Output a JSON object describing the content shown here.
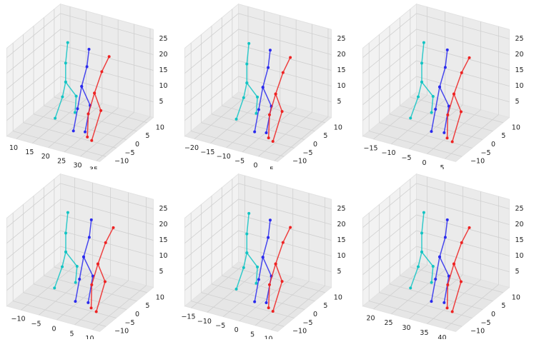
{
  "chart_data": [
    {
      "type": "line3d",
      "xlim": [
        7,
        36
      ],
      "ylim": [
        -13,
        13
      ],
      "zlim": [
        0,
        28
      ],
      "xticks": [
        10,
        15,
        20,
        25,
        30,
        35
      ],
      "yticks": [
        {
          "value": -10,
          "label": "−10"
        },
        {
          "value": -5,
          "label": "−5"
        },
        0,
        5,
        10
      ],
      "zticks": [
        5,
        10,
        15,
        20,
        25
      ],
      "series": [
        {
          "color": "#12c4c4",
          "x": [
            15,
            16,
            17,
            19,
            18,
            null,
            17,
            17,
            17
          ],
          "y": [
            -2,
            0,
            0,
            2,
            3,
            null,
            0,
            0,
            1
          ],
          "z": [
            2,
            8,
            13,
            8,
            2,
            null,
            13,
            19,
            25
          ]
        },
        {
          "color": "#2a2aee",
          "x": [
            22,
            22,
            22,
            24,
            25,
            null,
            22,
            23,
            23
          ],
          "y": [
            -4,
            -2,
            0,
            1,
            -3,
            null,
            0,
            1,
            2
          ],
          "z": [
            1,
            7,
            13,
            7,
            1,
            null,
            13,
            19,
            24
          ]
        },
        {
          "color": "#ee2222",
          "x": [
            27,
            26,
            26,
            28,
            29,
            null,
            26,
            27,
            28
          ],
          "y": [
            -5,
            -3,
            0,
            0,
            -6,
            null,
            0,
            2,
            4
          ],
          "z": [
            1,
            7,
            12,
            7,
            1,
            null,
            12,
            18,
            22
          ]
        }
      ]
    },
    {
      "type": "line3d",
      "xlim": [
        -23,
        6
      ],
      "ylim": [
        -13,
        13
      ],
      "zlim": [
        0,
        28
      ],
      "xticks": [
        {
          "value": -20,
          "label": "−20"
        },
        {
          "value": -15,
          "label": "−15"
        },
        {
          "value": -10,
          "label": "−10"
        },
        {
          "value": -5,
          "label": "−5"
        },
        0,
        5
      ],
      "yticks": [
        {
          "value": -10,
          "label": "−10"
        },
        {
          "value": -5,
          "label": "−5"
        },
        0,
        5,
        10
      ],
      "zticks": [
        5,
        10,
        15,
        20,
        25
      ],
      "series": [
        {
          "color": "#12c4c4",
          "x": [
            -14,
            -13,
            -12,
            -10,
            -11,
            null,
            -12,
            -12,
            -12
          ],
          "y": [
            -2,
            0,
            0,
            2,
            3,
            null,
            0,
            0,
            1
          ],
          "z": [
            2,
            8,
            13,
            8,
            2,
            null,
            13,
            19,
            25
          ]
        },
        {
          "color": "#2a2aee",
          "x": [
            -7,
            -7,
            -7,
            -5,
            -4,
            null,
            -7,
            -6,
            -6
          ],
          "y": [
            -4,
            -2,
            0,
            1,
            -3,
            null,
            0,
            1,
            2
          ],
          "z": [
            1,
            7,
            13,
            7,
            1,
            null,
            13,
            19,
            24
          ]
        },
        {
          "color": "#ee2222",
          "x": [
            -2,
            -3,
            -3,
            -1,
            0,
            null,
            -3,
            -2,
            -1
          ],
          "y": [
            -5,
            -3,
            0,
            0,
            -6,
            null,
            0,
            2,
            4
          ],
          "z": [
            1,
            7,
            12,
            7,
            1,
            null,
            12,
            18,
            22
          ]
        }
      ]
    },
    {
      "type": "line3d",
      "xlim": [
        -18,
        8
      ],
      "ylim": [
        -13,
        13
      ],
      "zlim": [
        0,
        28
      ],
      "xticks": [
        {
          "value": -15,
          "label": "−15"
        },
        {
          "value": -10,
          "label": "−10"
        },
        {
          "value": -5,
          "label": "−5"
        },
        0,
        5
      ],
      "yticks": [
        {
          "value": -10,
          "label": "−10"
        },
        {
          "value": -5,
          "label": "−5"
        },
        0,
        5,
        10
      ],
      "zticks": [
        5,
        10,
        15,
        20,
        25
      ],
      "series": [
        {
          "color": "#12c4c4",
          "x": [
            -11,
            -10,
            -9,
            -7,
            -8,
            null,
            -9,
            -9,
            -9
          ],
          "y": [
            -2,
            0,
            0,
            2,
            3,
            null,
            0,
            0,
            1
          ],
          "z": [
            2,
            8,
            13,
            8,
            2,
            null,
            13,
            19,
            25
          ]
        },
        {
          "color": "#2a2aee",
          "x": [
            -4,
            -4,
            -4,
            -2,
            -1,
            null,
            -4,
            -3,
            -3
          ],
          "y": [
            -4,
            -2,
            0,
            1,
            -3,
            null,
            0,
            1,
            2
          ],
          "z": [
            1,
            7,
            13,
            7,
            1,
            null,
            13,
            19,
            24
          ]
        },
        {
          "color": "#ee2222",
          "x": [
            1,
            0,
            0,
            2,
            3,
            null,
            0,
            1,
            2
          ],
          "y": [
            -5,
            -3,
            0,
            0,
            -6,
            null,
            0,
            2,
            4
          ],
          "z": [
            1,
            7,
            12,
            7,
            1,
            null,
            12,
            18,
            22
          ]
        }
      ]
    },
    {
      "type": "line3d",
      "xlim": [
        -14,
        12
      ],
      "ylim": [
        -13,
        13
      ],
      "zlim": [
        0,
        28
      ],
      "xticks": [
        {
          "value": -10,
          "label": "−10"
        },
        {
          "value": -5,
          "label": "−5"
        },
        0,
        5,
        10
      ],
      "yticks": [
        {
          "value": -10,
          "label": "−10"
        },
        {
          "value": -5,
          "label": "−5"
        },
        0,
        5,
        10
      ],
      "zticks": [
        5,
        10,
        15,
        20,
        25
      ],
      "series": [
        {
          "color": "#12c4c4",
          "x": [
            -7,
            -6,
            -5,
            -3,
            -4,
            null,
            -5,
            -5,
            -5
          ],
          "y": [
            -2,
            0,
            0,
            2,
            3,
            null,
            0,
            0,
            1
          ],
          "z": [
            2,
            8,
            13,
            8,
            2,
            null,
            13,
            19,
            25
          ]
        },
        {
          "color": "#2a2aee",
          "x": [
            0,
            0,
            0,
            2,
            3,
            null,
            0,
            1,
            1
          ],
          "y": [
            -4,
            -2,
            0,
            1,
            -3,
            null,
            0,
            1,
            2
          ],
          "z": [
            1,
            7,
            13,
            7,
            1,
            null,
            13,
            19,
            24
          ]
        },
        {
          "color": "#ee2222",
          "x": [
            5,
            4,
            4,
            6,
            7,
            null,
            4,
            5,
            6
          ],
          "y": [
            -5,
            -3,
            0,
            0,
            -6,
            null,
            0,
            2,
            4
          ],
          "z": [
            1,
            7,
            12,
            7,
            1,
            null,
            12,
            18,
            22
          ]
        }
      ]
    },
    {
      "type": "line3d",
      "xlim": [
        -17,
        12
      ],
      "ylim": [
        -13,
        13
      ],
      "zlim": [
        0,
        28
      ],
      "xticks": [
        {
          "value": -15,
          "label": "−15"
        },
        {
          "value": -10,
          "label": "−10"
        },
        {
          "value": -5,
          "label": "−5"
        },
        0,
        5,
        10
      ],
      "yticks": [
        {
          "value": -10,
          "label": "−10"
        },
        {
          "value": -5,
          "label": "−5"
        },
        0,
        5,
        10
      ],
      "zticks": [
        5,
        10,
        15,
        20,
        25
      ],
      "series": [
        {
          "color": "#12c4c4",
          "x": [
            -8,
            -7,
            -6,
            -4,
            -5,
            null,
            -6,
            -6,
            -6
          ],
          "y": [
            -2,
            0,
            0,
            2,
            3,
            null,
            0,
            0,
            1
          ],
          "z": [
            2,
            8,
            13,
            8,
            2,
            null,
            13,
            19,
            25
          ]
        },
        {
          "color": "#2a2aee",
          "x": [
            -1,
            -1,
            -1,
            1,
            2,
            null,
            -1,
            0,
            0
          ],
          "y": [
            -4,
            -2,
            0,
            1,
            -3,
            null,
            0,
            1,
            2
          ],
          "z": [
            1,
            7,
            13,
            7,
            1,
            null,
            13,
            19,
            24
          ]
        },
        {
          "color": "#ee2222",
          "x": [
            4,
            3,
            3,
            5,
            6,
            null,
            3,
            4,
            5
          ],
          "y": [
            -5,
            -3,
            0,
            0,
            -6,
            null,
            0,
            2,
            4
          ],
          "z": [
            1,
            7,
            12,
            7,
            1,
            null,
            12,
            18,
            22
          ]
        }
      ]
    },
    {
      "type": "line3d",
      "xlim": [
        17,
        43
      ],
      "ylim": [
        -13,
        13
      ],
      "zlim": [
        0,
        28
      ],
      "xticks": [
        20,
        25,
        30,
        35,
        40
      ],
      "yticks": [
        {
          "value": -10,
          "label": "−10"
        },
        {
          "value": -5,
          "label": "−5"
        },
        0,
        5,
        10
      ],
      "zticks": [
        5,
        10,
        15,
        20,
        25
      ],
      "series": [
        {
          "color": "#12c4c4",
          "x": [
            24,
            25,
            26,
            28,
            27,
            null,
            26,
            26,
            26
          ],
          "y": [
            -2,
            0,
            0,
            2,
            3,
            null,
            0,
            0,
            1
          ],
          "z": [
            2,
            8,
            13,
            8,
            2,
            null,
            13,
            19,
            25
          ]
        },
        {
          "color": "#2a2aee",
          "x": [
            31,
            31,
            31,
            33,
            34,
            null,
            31,
            32,
            32
          ],
          "y": [
            -4,
            -2,
            0,
            1,
            -3,
            null,
            0,
            1,
            2
          ],
          "z": [
            1,
            7,
            13,
            7,
            1,
            null,
            13,
            19,
            24
          ]
        },
        {
          "color": "#ee2222",
          "x": [
            36,
            35,
            35,
            37,
            38,
            null,
            35,
            36,
            37
          ],
          "y": [
            -5,
            -3,
            0,
            0,
            -6,
            null,
            0,
            2,
            4
          ],
          "z": [
            1,
            7,
            12,
            7,
            1,
            null,
            12,
            18,
            22
          ]
        }
      ]
    }
  ]
}
